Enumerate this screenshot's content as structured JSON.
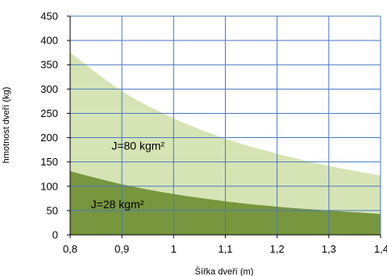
{
  "chart_data": {
    "type": "area",
    "xlabel": "Šířka dveří (m)",
    "ylabel": "hmotnost dveří (kg)",
    "xlim": [
      0.8,
      1.4
    ],
    "ylim": [
      0,
      450
    ],
    "x_ticks": [
      "0,8",
      "0,9",
      "1",
      "1,1",
      "1,2",
      "1,3",
      "1,4"
    ],
    "y_ticks": [
      "0",
      "50",
      "100",
      "150",
      "200",
      "250",
      "300",
      "350",
      "400",
      "450"
    ],
    "grid": true,
    "series": [
      {
        "name": "J=80 kgm²",
        "color": "#d6e4b5",
        "x": [
          0.8,
          0.9,
          1.0,
          1.1,
          1.2,
          1.3,
          1.4
        ],
        "values": [
          375,
          296,
          240,
          198,
          167,
          142,
          122
        ]
      },
      {
        "name": "J=28 kgm²",
        "color": "#77963e",
        "x": [
          0.8,
          0.9,
          1.0,
          1.1,
          1.2,
          1.3,
          1.4
        ],
        "values": [
          131,
          104,
          84,
          69,
          58,
          50,
          43
        ]
      }
    ],
    "annotations": [
      {
        "text": "J=80 kgm²",
        "x": 0.88,
        "y": 175
      },
      {
        "text": "J=28 kgm²",
        "x": 0.84,
        "y": 55
      }
    ]
  }
}
